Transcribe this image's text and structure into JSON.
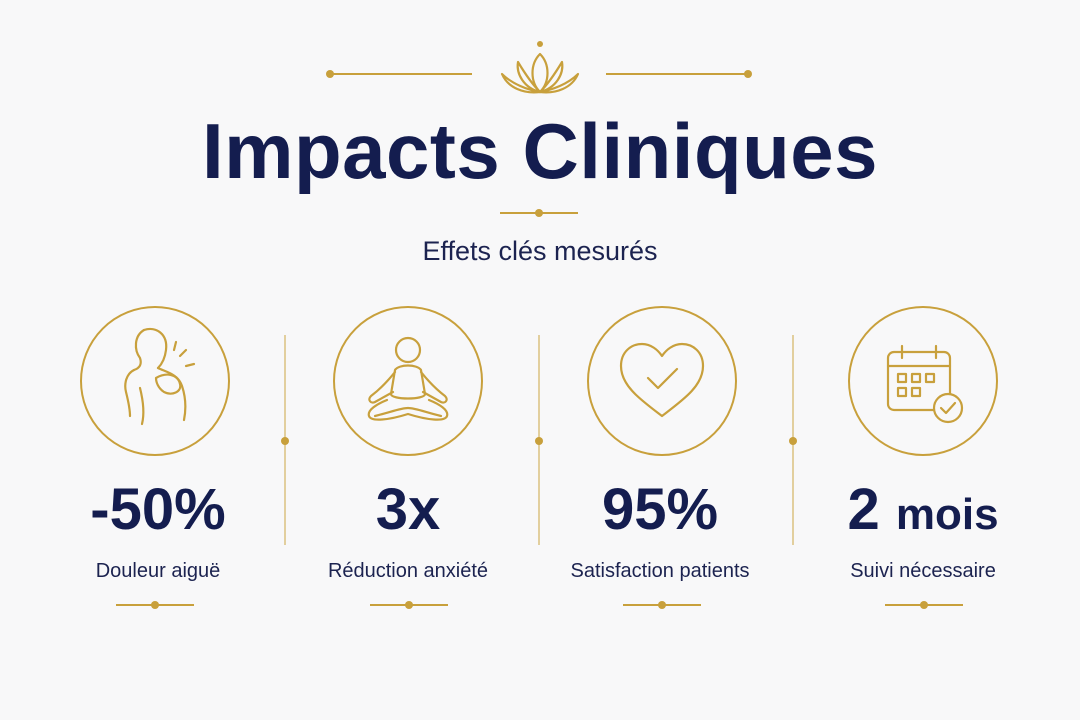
{
  "header": {
    "title": "Impacts Cliniques",
    "subtitle": "Effets clés mesurés",
    "ornament_icon": "lotus-icon"
  },
  "colors": {
    "navy": "#141d4f",
    "gold": "#c8a03c",
    "background": "#f8f8f9"
  },
  "stats": [
    {
      "value": "-50%",
      "label": "Douleur aiguë",
      "icon": "shoulder-pain-icon"
    },
    {
      "value": "3x",
      "label": "Réduction anxiété",
      "icon": "meditation-icon"
    },
    {
      "value": "95%",
      "label": "Satisfaction patients",
      "icon": "heart-check-icon"
    },
    {
      "value_number": "2",
      "value_unit": "mois",
      "label": "Suivi nécessaire",
      "icon": "calendar-check-icon"
    }
  ]
}
